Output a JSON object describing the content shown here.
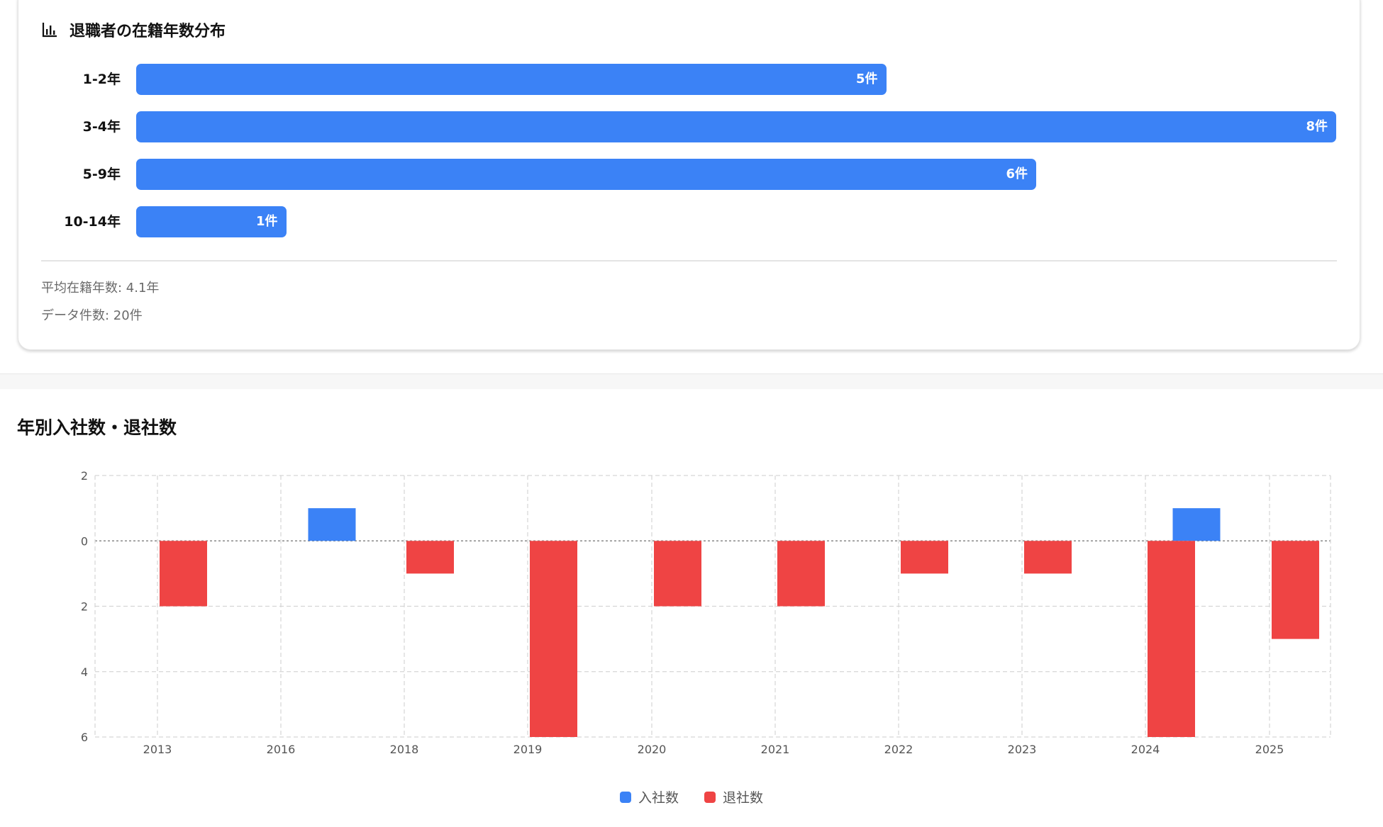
{
  "tenure_card": {
    "title": "退職者の在籍年数分布",
    "icon": "bar-chart-icon",
    "rows": [
      {
        "label": "1-2年",
        "count": 5,
        "value_text": "5件"
      },
      {
        "label": "3-4年",
        "count": 8,
        "value_text": "8件"
      },
      {
        "label": "5-9年",
        "count": 6,
        "value_text": "6件"
      },
      {
        "label": "10-14年",
        "count": 1,
        "value_text": "1件"
      }
    ],
    "avg_tenure": "平均在籍年数: 4.1年",
    "data_count": "データ件数: 20件"
  },
  "yearly_section": {
    "title": "年別入社数・退社数"
  },
  "colors": {
    "hires": "#3b82f6",
    "leavers": "#ef4444",
    "distribution_bar": "#3b82f6"
  },
  "chart_data": [
    {
      "type": "bar",
      "orientation": "horizontal",
      "title": "退職者の在籍年数分布",
      "categories": [
        "1-2年",
        "3-4年",
        "5-9年",
        "10-14年"
      ],
      "values": [
        5,
        8,
        6,
        1
      ],
      "data_labels": [
        "5件",
        "8件",
        "6件",
        "1件"
      ]
    },
    {
      "type": "bar",
      "title": "年別入社数・退社数",
      "categories": [
        "2013",
        "2016",
        "2018",
        "2019",
        "2020",
        "2021",
        "2022",
        "2023",
        "2024",
        "2025"
      ],
      "series": [
        {
          "name": "入社数",
          "color": "#3b82f6",
          "values": [
            0,
            1,
            0,
            0,
            0,
            0,
            0,
            0,
            1,
            0
          ]
        },
        {
          "name": "退社数",
          "color": "#ef4444",
          "values": [
            -2,
            0,
            -1,
            -6,
            -2,
            -2,
            -1,
            -1,
            -6,
            -3
          ]
        }
      ],
      "ylim": [
        -6,
        2
      ],
      "y_ticks": [
        2,
        0,
        -2,
        -4,
        -6
      ],
      "y_tick_labels": [
        "2",
        "0",
        "2",
        "4",
        "6"
      ],
      "grid": true,
      "legend": [
        "入社数",
        "退社数"
      ],
      "legend_position": "bottom-center"
    }
  ]
}
